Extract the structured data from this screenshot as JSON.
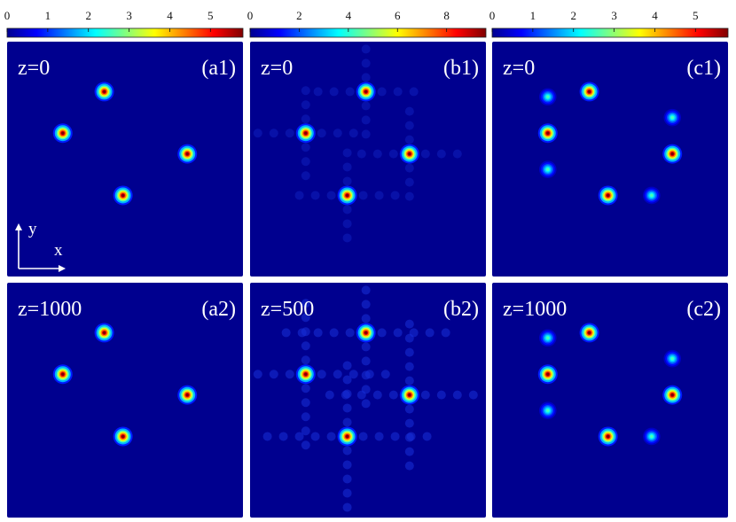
{
  "chart_data": {
    "type": "heatmap",
    "colormap": "jet",
    "background_color": "#00008f",
    "axis_labels": {
      "x": "x",
      "y": "y"
    },
    "colorbars": [
      {
        "column": "a",
        "range": [
          0,
          5.8
        ],
        "ticks": [
          "0",
          "1",
          "2",
          "3",
          "4",
          "5"
        ],
        "tick_values": [
          0,
          1,
          2,
          3,
          4,
          5
        ]
      },
      {
        "column": "b",
        "range": [
          0,
          9.6
        ],
        "ticks": [
          "0",
          "2",
          "4",
          "6",
          "8"
        ],
        "tick_values": [
          0,
          2,
          4,
          6,
          8
        ]
      },
      {
        "column": "c",
        "range": [
          0,
          5.8
        ],
        "ticks": [
          "0",
          "1",
          "2",
          "3",
          "4",
          "5"
        ],
        "tick_values": [
          0,
          1,
          2,
          3,
          4,
          5
        ]
      }
    ],
    "panels": [
      {
        "id": "a1",
        "label": "(a1)",
        "z_label": "z=0",
        "peak": 5.8,
        "secondary": 0,
        "spots": [
          [
            -0.2,
            0.65
          ],
          [
            -0.6,
            0.25
          ],
          [
            0.6,
            0.05
          ],
          [
            -0.02,
            -0.35
          ]
        ]
      },
      {
        "id": "b1",
        "label": "(b1)",
        "z_label": "z=0",
        "peak": 9.6,
        "secondary": 0,
        "spots": [
          [
            -0.02,
            0.65
          ],
          [
            -0.6,
            0.25
          ],
          [
            0.4,
            0.05
          ],
          [
            -0.2,
            -0.35
          ]
        ]
      },
      {
        "id": "c1",
        "label": "(c1)",
        "z_label": "z=0",
        "peak": 5.8,
        "secondary": 2.6,
        "spots": [
          [
            -0.2,
            0.65
          ],
          [
            -0.6,
            0.25
          ],
          [
            0.6,
            0.05
          ],
          [
            -0.02,
            -0.35
          ]
        ],
        "secondary_spots": [
          [
            -0.6,
            0.6
          ],
          [
            0.6,
            0.4
          ],
          [
            0.4,
            -0.35
          ],
          [
            -0.6,
            -0.1
          ]
        ]
      },
      {
        "id": "a2",
        "label": "(a2)",
        "z_label": "z=1000",
        "peak": 5.8,
        "secondary": 0,
        "spots": [
          [
            -0.2,
            0.65
          ],
          [
            -0.6,
            0.25
          ],
          [
            0.6,
            0.05
          ],
          [
            -0.02,
            -0.35
          ]
        ]
      },
      {
        "id": "b2",
        "label": "(b2)",
        "z_label": "z=500",
        "peak": 9.6,
        "secondary": 0,
        "spots": [
          [
            -0.02,
            0.65
          ],
          [
            -0.6,
            0.25
          ],
          [
            0.4,
            0.05
          ],
          [
            -0.2,
            -0.35
          ]
        ]
      },
      {
        "id": "c2",
        "label": "(c2)",
        "z_label": "z=1000",
        "peak": 5.8,
        "secondary": 2.6,
        "spots": [
          [
            -0.2,
            0.65
          ],
          [
            -0.6,
            0.25
          ],
          [
            0.6,
            0.05
          ],
          [
            -0.02,
            -0.35
          ]
        ],
        "secondary_spots": [
          [
            -0.6,
            0.6
          ],
          [
            0.6,
            0.4
          ],
          [
            0.4,
            -0.35
          ],
          [
            -0.6,
            -0.1
          ]
        ]
      }
    ]
  }
}
